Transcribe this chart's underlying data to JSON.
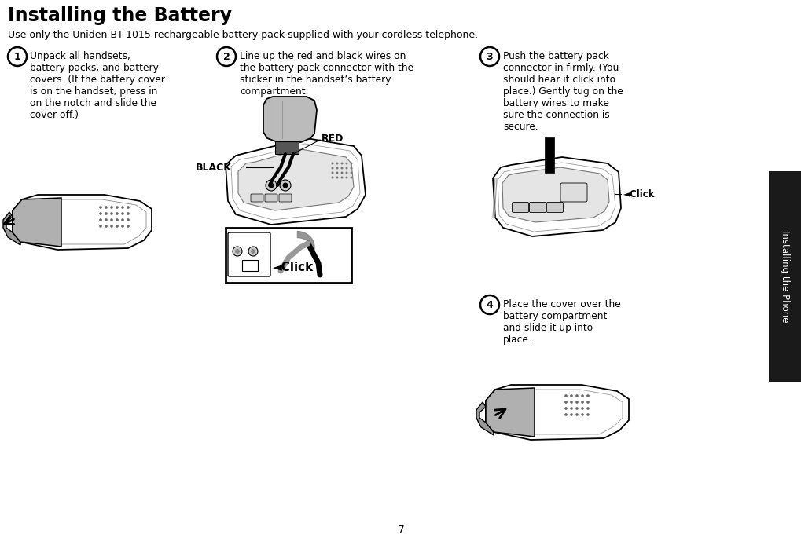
{
  "title": "Installing the Battery",
  "subtitle": "Use only the Uniden BT-1015 rechargeable battery pack supplied with your cordless telephone.",
  "bg_color": "#ffffff",
  "sidebar_bg": "#1a1a1a",
  "sidebar_text": "Installing the Phone",
  "sidebar_text_color": "#ffffff",
  "page_num": "7",
  "step1_num": "1",
  "step1_text": "Unpack all handsets,\nbattery packs, and battery\ncovers. (If the battery cover\nis on the handset, press in\non the notch and slide the\ncover off.)",
  "step2_num": "2",
  "step2_text": "Line up the red and black wires on\nthe battery pack connector with the\nsticker in the handset’s battery\ncompartment.",
  "step3_num": "3",
  "step3_text": "Push the battery pack\nconnector in firmly. (You\nshould hear it click into\nplace.) Gently tug on the\nbattery wires to make\nsure the connection is\nsecure.",
  "step4_num": "4",
  "step4_text": "Place the cover over the\nbattery compartment\nand slide it up into\nplace.",
  "label_red": "RED",
  "label_black": "BLACK",
  "click_label": "◄Click",
  "label_lw": 1.5,
  "body_color": "#ffffff",
  "batt_gray": "#aaaaaa",
  "comp_gray": "#dddddd",
  "dark_gray": "#555555",
  "line_color": "#000000",
  "dot_color": "#888888"
}
